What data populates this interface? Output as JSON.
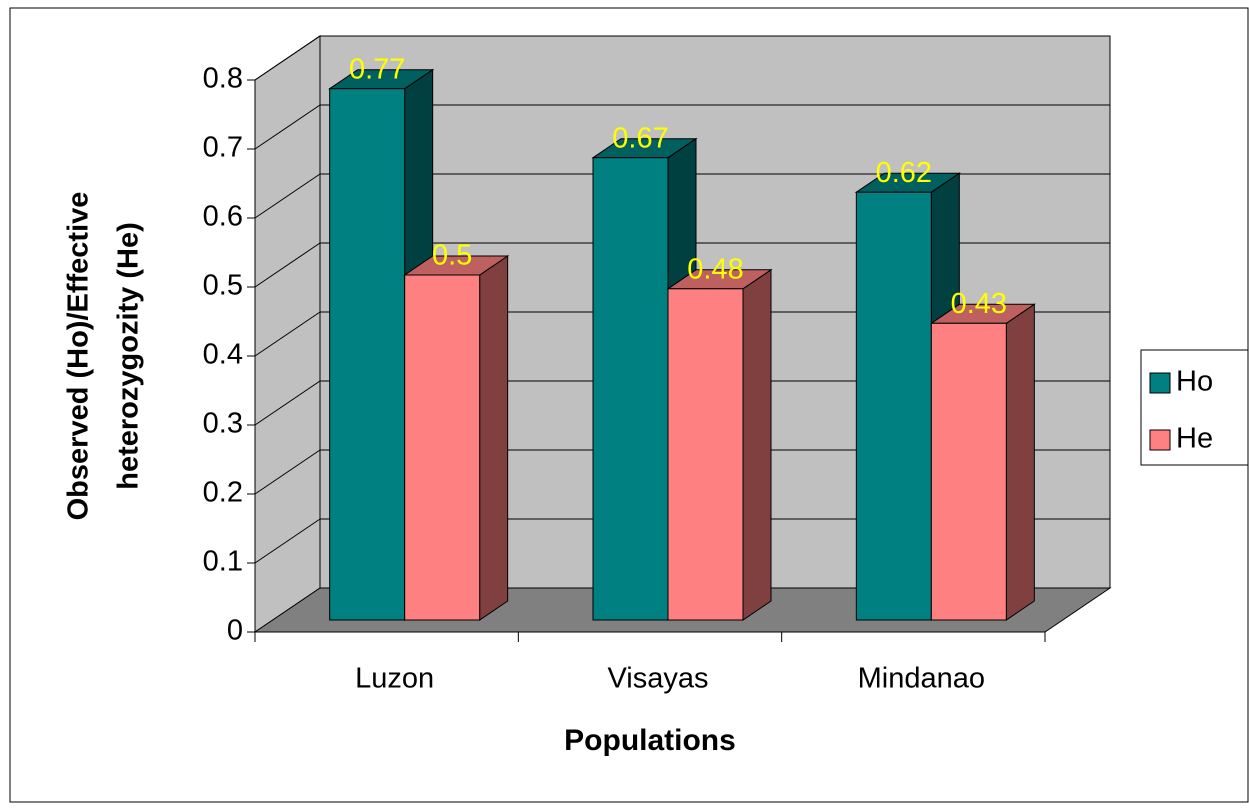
{
  "chart_data": {
    "type": "bar3d",
    "ylabel": [
      "Observed (Ho)/Effective",
      "heterozygozity (He)"
    ],
    "xlabel": "Populations",
    "categories": [
      "Luzon",
      "Visayas",
      "Mindanao"
    ],
    "series": [
      {
        "name": "Ho",
        "color": "#008080",
        "values": [
          0.77,
          0.67,
          0.62
        ]
      },
      {
        "name": "He",
        "color": "#ff8080",
        "values": [
          0.5,
          0.48,
          0.43
        ]
      }
    ],
    "ylim": [
      0,
      0.8
    ],
    "yticks": [
      0,
      0.1,
      0.2,
      0.3,
      0.4,
      0.5,
      0.6,
      0.7,
      0.8
    ],
    "grid": true,
    "legend": "right"
  }
}
